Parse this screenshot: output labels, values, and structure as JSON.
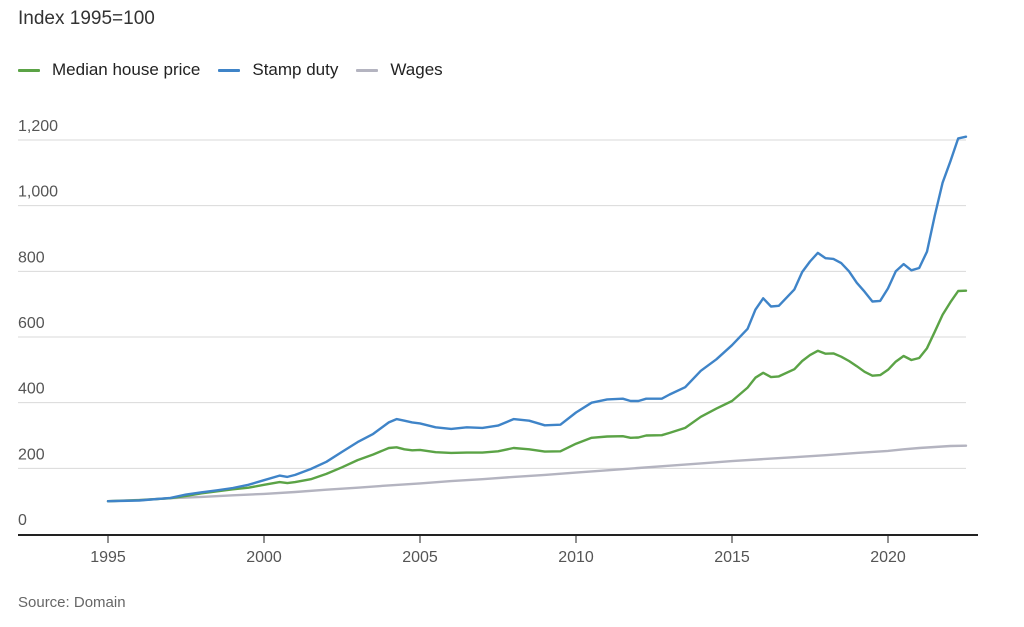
{
  "chart_data": {
    "type": "line",
    "subtitle": "Index 1995=100",
    "source": "Source: Domain",
    "ylim": [
      0,
      1200
    ],
    "y_ticks": [
      {
        "value": 0,
        "label": "0"
      },
      {
        "value": 200,
        "label": "200"
      },
      {
        "value": 400,
        "label": "400"
      },
      {
        "value": 600,
        "label": "600"
      },
      {
        "value": 800,
        "label": "800"
      },
      {
        "value": 1000,
        "label": "1,000"
      },
      {
        "value": 1200,
        "label": "1,200"
      }
    ],
    "x_ticks": [
      {
        "value": 1995,
        "label": "1995"
      },
      {
        "value": 2000,
        "label": "2000"
      },
      {
        "value": 2005,
        "label": "2005"
      },
      {
        "value": 2010,
        "label": "2010"
      },
      {
        "value": 2015,
        "label": "2015"
      },
      {
        "value": 2020,
        "label": "2020"
      }
    ],
    "grid": true,
    "legend_position": "top-left",
    "series": [
      {
        "name": "Median house price",
        "color": "#5ba346",
        "points": [
          [
            1995.0,
            100
          ],
          [
            1996.0,
            103
          ],
          [
            1997.0,
            109
          ],
          [
            1997.5,
            116
          ],
          [
            1998.0,
            124
          ],
          [
            1998.5,
            130
          ],
          [
            1999.0,
            136
          ],
          [
            1999.5,
            141
          ],
          [
            2000.0,
            150
          ],
          [
            2000.5,
            158
          ],
          [
            2000.75,
            155
          ],
          [
            2001.0,
            158
          ],
          [
            2001.5,
            167
          ],
          [
            2002.0,
            183
          ],
          [
            2002.5,
            203
          ],
          [
            2003.0,
            225
          ],
          [
            2003.5,
            242
          ],
          [
            2004.0,
            262
          ],
          [
            2004.25,
            264
          ],
          [
            2004.5,
            258
          ],
          [
            2004.75,
            255
          ],
          [
            2005.0,
            256
          ],
          [
            2005.5,
            249
          ],
          [
            2006.0,
            247
          ],
          [
            2006.5,
            248
          ],
          [
            2007.0,
            248
          ],
          [
            2007.5,
            252
          ],
          [
            2008.0,
            262
          ],
          [
            2008.5,
            258
          ],
          [
            2009.0,
            251
          ],
          [
            2009.5,
            252
          ],
          [
            2010.0,
            275
          ],
          [
            2010.5,
            293
          ],
          [
            2011.0,
            297
          ],
          [
            2011.5,
            298
          ],
          [
            2011.75,
            293
          ],
          [
            2012.0,
            294
          ],
          [
            2012.25,
            300
          ],
          [
            2012.75,
            301
          ],
          [
            2013.0,
            308
          ],
          [
            2013.5,
            323
          ],
          [
            2014.0,
            357
          ],
          [
            2014.5,
            382
          ],
          [
            2015.0,
            405
          ],
          [
            2015.5,
            446
          ],
          [
            2015.75,
            476
          ],
          [
            2016.0,
            491
          ],
          [
            2016.25,
            478
          ],
          [
            2016.5,
            480
          ],
          [
            2017.0,
            502
          ],
          [
            2017.25,
            527
          ],
          [
            2017.5,
            545
          ],
          [
            2017.75,
            558
          ],
          [
            2018.0,
            549
          ],
          [
            2018.25,
            550
          ],
          [
            2018.5,
            540
          ],
          [
            2018.75,
            527
          ],
          [
            2019.0,
            511
          ],
          [
            2019.25,
            494
          ],
          [
            2019.5,
            482
          ],
          [
            2019.75,
            484
          ],
          [
            2020.0,
            500
          ],
          [
            2020.25,
            525
          ],
          [
            2020.5,
            542
          ],
          [
            2020.75,
            530
          ],
          [
            2021.0,
            536
          ],
          [
            2021.25,
            566
          ],
          [
            2021.5,
            616
          ],
          [
            2021.75,
            668
          ],
          [
            2022.0,
            706
          ],
          [
            2022.25,
            740
          ],
          [
            2022.5,
            741
          ]
        ]
      },
      {
        "name": "Stamp duty",
        "color": "#3f84c8",
        "points": [
          [
            1995.0,
            100
          ],
          [
            1996.0,
            102
          ],
          [
            1997.0,
            110
          ],
          [
            1997.5,
            120
          ],
          [
            1998.0,
            127
          ],
          [
            1998.5,
            133
          ],
          [
            1999.0,
            140
          ],
          [
            1999.5,
            150
          ],
          [
            2000.0,
            164
          ],
          [
            2000.5,
            178
          ],
          [
            2000.75,
            174
          ],
          [
            2001.0,
            180
          ],
          [
            2001.5,
            198
          ],
          [
            2002.0,
            220
          ],
          [
            2002.5,
            250
          ],
          [
            2003.0,
            280
          ],
          [
            2003.5,
            305
          ],
          [
            2004.0,
            340
          ],
          [
            2004.25,
            350
          ],
          [
            2004.5,
            345
          ],
          [
            2004.75,
            340
          ],
          [
            2005.0,
            337
          ],
          [
            2005.5,
            325
          ],
          [
            2006.0,
            320
          ],
          [
            2006.5,
            325
          ],
          [
            2007.0,
            323
          ],
          [
            2007.5,
            330
          ],
          [
            2008.0,
            350
          ],
          [
            2008.5,
            345
          ],
          [
            2009.0,
            331
          ],
          [
            2009.5,
            333
          ],
          [
            2010.0,
            370
          ],
          [
            2010.5,
            400
          ],
          [
            2011.0,
            410
          ],
          [
            2011.5,
            412
          ],
          [
            2011.75,
            405
          ],
          [
            2012.0,
            405
          ],
          [
            2012.25,
            412
          ],
          [
            2012.75,
            412
          ],
          [
            2013.0,
            425
          ],
          [
            2013.5,
            447
          ],
          [
            2014.0,
            497
          ],
          [
            2014.5,
            532
          ],
          [
            2015.0,
            575
          ],
          [
            2015.5,
            625
          ],
          [
            2015.75,
            683
          ],
          [
            2016.0,
            718
          ],
          [
            2016.25,
            693
          ],
          [
            2016.5,
            695
          ],
          [
            2017.0,
            745
          ],
          [
            2017.25,
            798
          ],
          [
            2017.5,
            830
          ],
          [
            2017.75,
            856
          ],
          [
            2018.0,
            840
          ],
          [
            2018.25,
            838
          ],
          [
            2018.5,
            825
          ],
          [
            2018.75,
            800
          ],
          [
            2019.0,
            765
          ],
          [
            2019.25,
            738
          ],
          [
            2019.5,
            708
          ],
          [
            2019.75,
            710
          ],
          [
            2020.0,
            748
          ],
          [
            2020.25,
            800
          ],
          [
            2020.5,
            822
          ],
          [
            2020.75,
            803
          ],
          [
            2021.0,
            810
          ],
          [
            2021.25,
            860
          ],
          [
            2021.5,
            970
          ],
          [
            2021.75,
            1070
          ],
          [
            2022.0,
            1135
          ],
          [
            2022.25,
            1205
          ],
          [
            2022.5,
            1210
          ]
        ]
      },
      {
        "name": "Wages",
        "color": "#b4b4c0",
        "points": [
          [
            1995.0,
            100
          ],
          [
            1996.0,
            104
          ],
          [
            1997.0,
            109
          ],
          [
            1998.0,
            113
          ],
          [
            1999.0,
            118
          ],
          [
            2000.0,
            122
          ],
          [
            2001.0,
            128
          ],
          [
            2002.0,
            135
          ],
          [
            2003.0,
            141
          ],
          [
            2004.0,
            148
          ],
          [
            2005.0,
            154
          ],
          [
            2006.0,
            161
          ],
          [
            2007.0,
            167
          ],
          [
            2008.0,
            174
          ],
          [
            2009.0,
            180
          ],
          [
            2010.0,
            187
          ],
          [
            2011.0,
            194
          ],
          [
            2012.0,
            201
          ],
          [
            2013.0,
            208
          ],
          [
            2014.0,
            215
          ],
          [
            2015.0,
            222
          ],
          [
            2016.0,
            228
          ],
          [
            2017.0,
            234
          ],
          [
            2018.0,
            240
          ],
          [
            2019.0,
            247
          ],
          [
            2020.0,
            253
          ],
          [
            2020.5,
            258
          ],
          [
            2021.0,
            262
          ],
          [
            2022.0,
            268
          ],
          [
            2022.5,
            269
          ]
        ]
      }
    ]
  }
}
